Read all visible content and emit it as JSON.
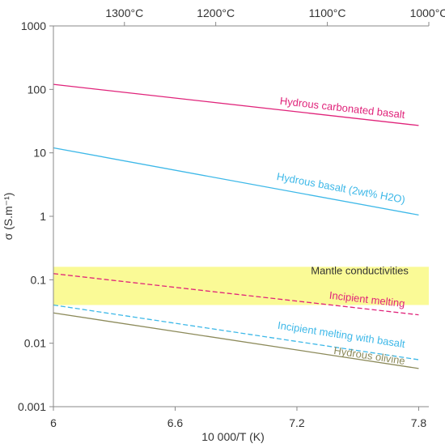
{
  "chart_data": {
    "type": "line",
    "title": "",
    "xlabel": "10 000/T (K)",
    "ylabel": "σ (S.m⁻¹)",
    "xlim": [
      6.0,
      7.85
    ],
    "ylim": [
      0.001,
      1000
    ],
    "y_scale": "log",
    "x_ticks": [
      6,
      6.6,
      7.2,
      7.8
    ],
    "x_tick_labels": [
      "6",
      "6.6",
      "7.2",
      "7.8"
    ],
    "y_ticks": [
      0.001,
      0.01,
      0.1,
      1,
      10,
      100,
      1000
    ],
    "y_tick_labels": [
      "0.001",
      "0.01",
      "0.1",
      "1",
      "10",
      "100",
      "1000"
    ],
    "top_axis": {
      "ticks": [
        6.35,
        6.8,
        7.35,
        7.85
      ],
      "labels": [
        "1300°C",
        "1200°C",
        "1100°C",
        "1000°C"
      ]
    },
    "band": {
      "label": "Mantle conductivities",
      "y_range": [
        0.04,
        0.16
      ],
      "color": "#fafa96"
    },
    "grid": false,
    "legend": "none",
    "series": [
      {
        "name": "Hydrous carbonated basalt",
        "x": [
          6.0,
          7.8
        ],
        "y": [
          120,
          27
        ],
        "color": "#e0237a",
        "dash": false
      },
      {
        "name": "Hydrous basalt (2wt% H2O)",
        "x": [
          6.0,
          7.8
        ],
        "y": [
          12,
          1.05
        ],
        "color": "#3db8e8",
        "dash": false
      },
      {
        "name": "Incipient melting",
        "x": [
          6.0,
          7.8
        ],
        "y": [
          0.125,
          0.028
        ],
        "color": "#e0237a",
        "dash": true
      },
      {
        "name": "Incipient melting with basalt",
        "x": [
          6.0,
          7.8
        ],
        "y": [
          0.04,
          0.0055
        ],
        "color": "#3db8e8",
        "dash": true
      },
      {
        "name": "Hydrous olivine",
        "x": [
          6.0,
          7.8
        ],
        "y": [
          0.03,
          0.004
        ],
        "color": "#8c8a5a",
        "dash": false
      }
    ],
    "annotations": [
      {
        "text": "Hydrous carbonated basalt",
        "x": 7.73,
        "y": 35,
        "color": "#e0237a"
      },
      {
        "text": "Hydrous basalt (2wt% H2O)",
        "x": 7.73,
        "y": 1.6,
        "color": "#3db8e8"
      },
      {
        "text": "Mantle conductivities",
        "x": 7.75,
        "y": 0.122,
        "color": "#333333"
      },
      {
        "text": "Incipient melting",
        "x": 7.73,
        "y": 0.037,
        "color": "#e0237a"
      },
      {
        "text": "Incipient melting with basalt",
        "x": 7.73,
        "y": 0.0085,
        "color": "#3db8e8"
      },
      {
        "text": "Hydrous olivine",
        "x": 7.73,
        "y": 0.0046,
        "color": "#8c8a5a"
      }
    ]
  }
}
